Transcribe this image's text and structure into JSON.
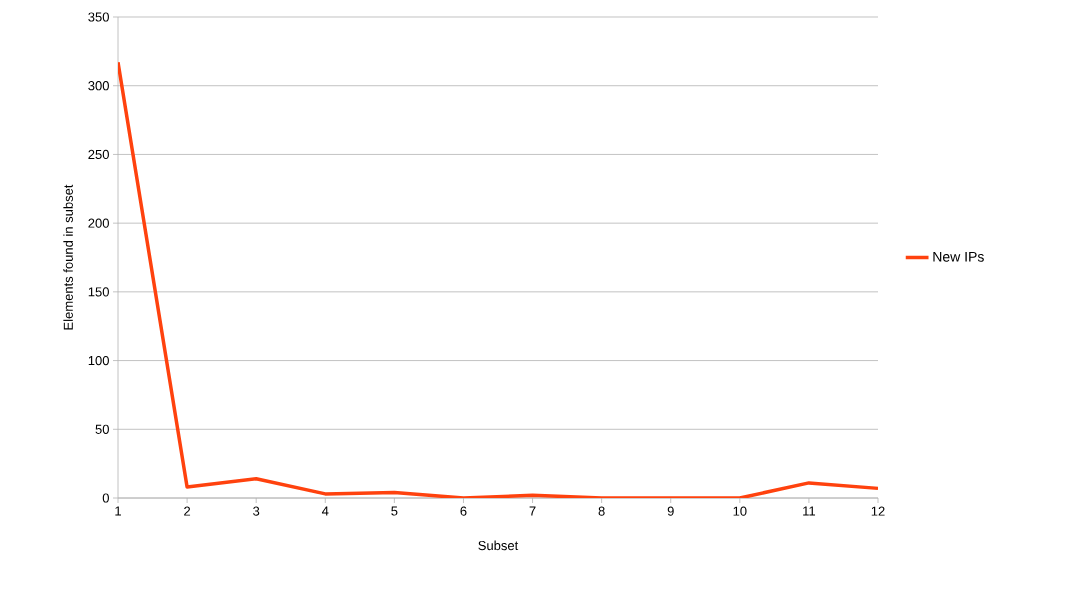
{
  "chart_data": {
    "type": "line",
    "xlabel": "Subset",
    "ylabel": "Elements found in subset",
    "categories": [
      "1",
      "2",
      "3",
      "4",
      "5",
      "6",
      "7",
      "8",
      "9",
      "10",
      "11",
      "12"
    ],
    "series": [
      {
        "name": "New IPs",
        "color": "#ff420e",
        "values": [
          317,
          8,
          14,
          3,
          4,
          0,
          2,
          0,
          0,
          0,
          11,
          7
        ]
      }
    ],
    "ylim": [
      0,
      350
    ],
    "yticks": [
      0,
      50,
      100,
      150,
      200,
      250,
      300,
      350
    ],
    "grid": "y",
    "legend": "right",
    "marker": "none"
  }
}
